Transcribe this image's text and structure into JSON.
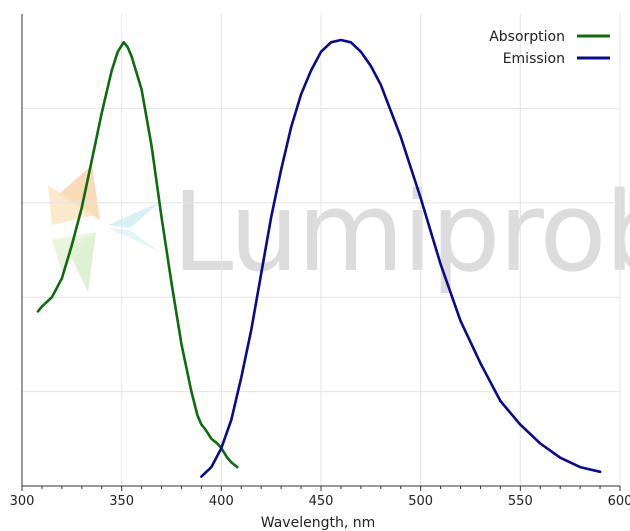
{
  "chart_data": {
    "type": "line",
    "title": "",
    "xlabel": "Wavelength, nm",
    "ylabel": "",
    "xlim": [
      300,
      600
    ],
    "ylim": [
      0,
      1
    ],
    "x_ticks": [
      300,
      350,
      400,
      450,
      500,
      550,
      600
    ],
    "y_grid": [
      0.2,
      0.4,
      0.6,
      0.8
    ],
    "grid": true,
    "legend_position": "top-right",
    "watermark": "Lumiprobe",
    "series": [
      {
        "name": "Absorption",
        "color": "#0f6b0f",
        "x": [
          308,
          310,
          315,
          320,
          325,
          330,
          335,
          340,
          345,
          348,
          351,
          353,
          355,
          360,
          365,
          370,
          375,
          380,
          385,
          388,
          390,
          392,
          395,
          398,
          400,
          403,
          405,
          408
        ],
        "y": [
          0.37,
          0.38,
          0.4,
          0.44,
          0.51,
          0.59,
          0.69,
          0.79,
          0.88,
          0.92,
          0.94,
          0.93,
          0.91,
          0.84,
          0.72,
          0.57,
          0.43,
          0.3,
          0.2,
          0.15,
          0.13,
          0.12,
          0.1,
          0.09,
          0.08,
          0.06,
          0.05,
          0.04
        ]
      },
      {
        "name": "Emission",
        "color": "#0a0a8a",
        "x": [
          390,
          395,
          400,
          405,
          410,
          415,
          420,
          425,
          430,
          435,
          440,
          445,
          450,
          455,
          460,
          465,
          470,
          475,
          480,
          490,
          500,
          510,
          520,
          530,
          540,
          550,
          560,
          570,
          580,
          590
        ],
        "y": [
          0.02,
          0.04,
          0.08,
          0.14,
          0.23,
          0.33,
          0.45,
          0.57,
          0.67,
          0.76,
          0.83,
          0.88,
          0.92,
          0.94,
          0.945,
          0.94,
          0.92,
          0.89,
          0.85,
          0.74,
          0.61,
          0.47,
          0.35,
          0.26,
          0.18,
          0.13,
          0.09,
          0.06,
          0.04,
          0.03
        ]
      }
    ]
  }
}
